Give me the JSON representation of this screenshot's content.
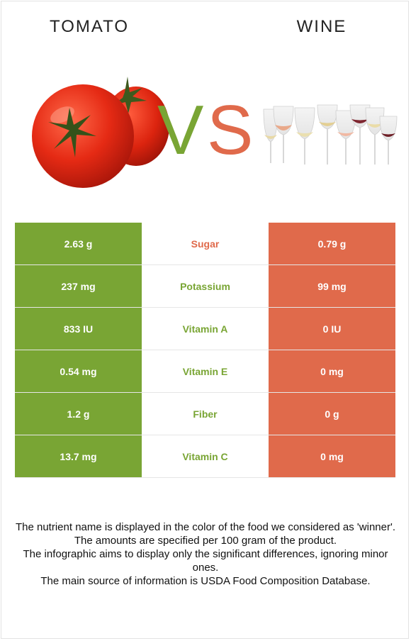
{
  "header": {
    "left_food": "TOMATO",
    "right_food": "WINE",
    "vs_v": "V",
    "vs_s": "S"
  },
  "colors": {
    "left_accent": "#79a534",
    "right_accent": "#e06a4b"
  },
  "rows": [
    {
      "left": "2.63 g",
      "nutrient": "Sugar",
      "right": "0.79 g",
      "winner": "right"
    },
    {
      "left": "237 mg",
      "nutrient": "Potassium",
      "right": "99 mg",
      "winner": "left"
    },
    {
      "left": "833 IU",
      "nutrient": "Vitamin A",
      "right": "0 IU",
      "winner": "left"
    },
    {
      "left": "0.54 mg",
      "nutrient": "Vitamin E",
      "right": "0 mg",
      "winner": "left"
    },
    {
      "left": "1.2 g",
      "nutrient": "Fiber",
      "right": "0 g",
      "winner": "left"
    },
    {
      "left": "13.7 mg",
      "nutrient": "Vitamin C",
      "right": "0 mg",
      "winner": "left"
    }
  ],
  "footer": {
    "lines": [
      "The nutrient name is displayed in the color of the food we considered as 'winner'.",
      "The amounts are specified per 100 gram of the product.",
      "The infographic aims to display only the significant differences, ignoring minor ones.",
      "The main source of information is USDA Food Composition Database."
    ]
  }
}
